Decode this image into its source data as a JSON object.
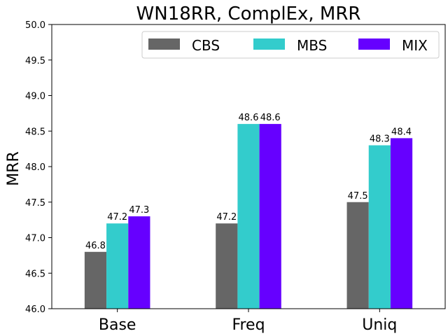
{
  "chart_data": {
    "type": "bar",
    "title": "WN18RR, ComplEx, MRR",
    "xlabel": "",
    "ylabel": "MRR",
    "categories": [
      "Base",
      "Freq",
      "Uniq"
    ],
    "series": [
      {
        "name": "CBS",
        "color": "#666666",
        "values": [
          46.8,
          47.2,
          47.5
        ],
        "labels": [
          "46.8",
          "47.2",
          "47.5"
        ]
      },
      {
        "name": "MBS",
        "color": "#33cccc",
        "values": [
          47.2,
          48.6,
          48.3
        ],
        "labels": [
          "47.2",
          "48.6",
          "48.3"
        ]
      },
      {
        "name": "MIX",
        "color": "#6600ff",
        "values": [
          47.3,
          48.6,
          48.4
        ],
        "labels": [
          "47.3",
          "48.6",
          "48.4"
        ]
      }
    ],
    "ylim": [
      46.0,
      50.0
    ],
    "yticks": [
      "46.0",
      "46.5",
      "47.0",
      "47.5",
      "48.0",
      "48.5",
      "49.0",
      "49.5",
      "50.0"
    ],
    "grid": false,
    "legend_position": "top-right"
  }
}
